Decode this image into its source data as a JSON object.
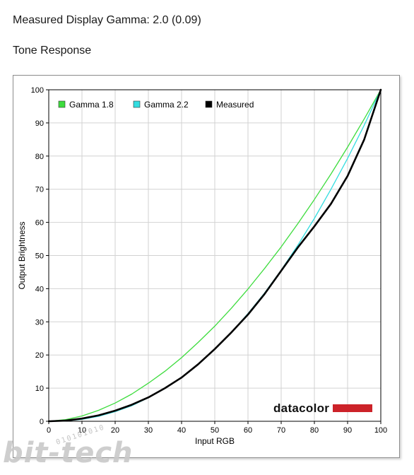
{
  "page": {
    "heading": "Measured Display Gamma: 2.0 (0.09)",
    "subheading": "Tone Response"
  },
  "brand": {
    "logo_text": "datacolor",
    "accent": "#cc2229"
  },
  "watermark": {
    "text": "bit-tech",
    "arc_text": "010101010"
  },
  "chart_data": {
    "type": "line",
    "title": "",
    "xlabel": "Input RGB",
    "ylabel": "Output Brightness",
    "xlim": [
      0,
      100
    ],
    "ylim": [
      0,
      100
    ],
    "xticks": [
      0,
      10,
      20,
      30,
      40,
      50,
      60,
      70,
      80,
      90,
      100
    ],
    "yticks": [
      0,
      10,
      20,
      30,
      40,
      50,
      60,
      70,
      80,
      90,
      100
    ],
    "grid": true,
    "legend_position": "top-left",
    "series": [
      {
        "name": "Gamma 1.8",
        "color": "#3ddc3d",
        "x": [
          0,
          5,
          10,
          15,
          20,
          25,
          30,
          35,
          40,
          45,
          50,
          55,
          60,
          65,
          70,
          75,
          80,
          85,
          90,
          95,
          100
        ],
        "y": [
          0,
          0.5,
          1.6,
          3.3,
          5.5,
          8.2,
          11.5,
          15.1,
          19.2,
          23.8,
          28.7,
          34.1,
          39.9,
          46.1,
          52.6,
          59.6,
          66.9,
          74.6,
          82.7,
          91.2,
          100
        ]
      },
      {
        "name": "Gamma 2.2",
        "color": "#33dde0",
        "x": [
          0,
          5,
          10,
          15,
          20,
          25,
          30,
          35,
          40,
          45,
          50,
          55,
          60,
          65,
          70,
          75,
          80,
          85,
          90,
          95,
          100
        ],
        "y": [
          0,
          0.1,
          0.6,
          1.5,
          2.9,
          4.7,
          7.1,
          9.9,
          13.3,
          17.3,
          21.8,
          26.8,
          32.5,
          38.7,
          45.6,
          53.1,
          61.2,
          70.0,
          79.3,
          89.3,
          100
        ]
      },
      {
        "name": "Measured",
        "color": "#000000",
        "x": [
          0,
          5,
          10,
          15,
          20,
          25,
          30,
          35,
          40,
          45,
          50,
          55,
          60,
          65,
          70,
          75,
          80,
          85,
          90,
          95,
          100
        ],
        "y": [
          0,
          0.2,
          0.8,
          1.8,
          3.2,
          5.0,
          7.2,
          10.0,
          13.2,
          17.2,
          21.8,
          26.8,
          32.2,
          38.4,
          45.4,
          52.4,
          58.8,
          65.6,
          74.0,
          85.0,
          100
        ]
      }
    ]
  }
}
